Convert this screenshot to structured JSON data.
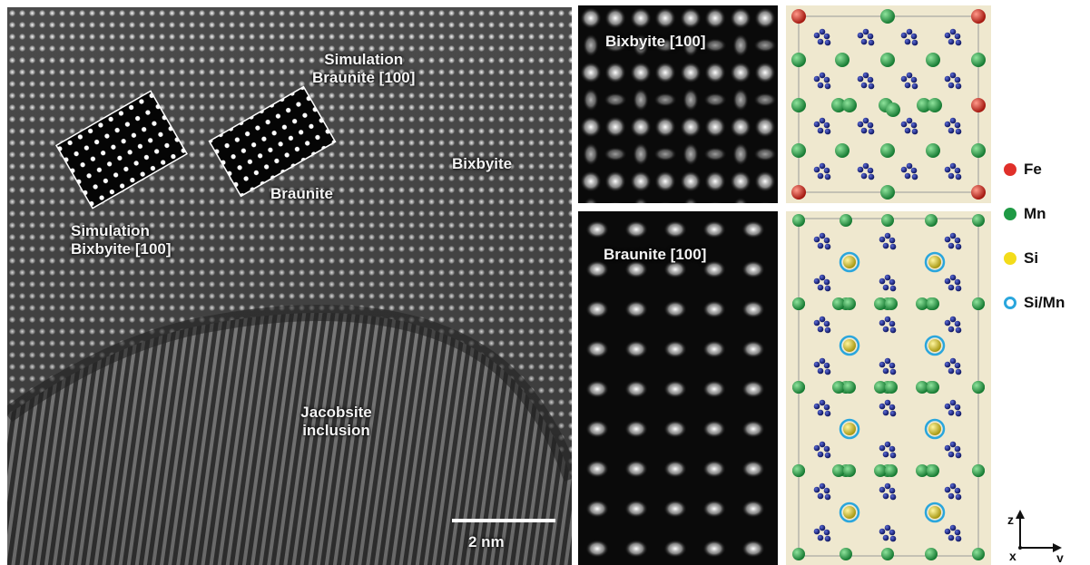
{
  "figure": {
    "main": {
      "labels": {
        "sim_braunite_line1": "Simulation",
        "sim_braunite_line2": "Braunite [100]",
        "bixbyite": "Bixbyite",
        "braunite": "Braunite",
        "sim_bixbyite_line1": "Simulation",
        "sim_bixbyite_line2": "Bixbyite [100]",
        "jacobsite_line1": "Jacobsite",
        "jacobsite_line2": "inclusion"
      },
      "scale_bar_label": "2 nm"
    },
    "simulations": {
      "bixbyite_title": "Bixbyite [100]",
      "braunite_title": "Braunite [100]"
    },
    "legend": [
      {
        "label": "Fe",
        "color": "#e0302a",
        "ring": false
      },
      {
        "label": "Mn",
        "color": "#1f9a45",
        "ring": false
      },
      {
        "label": "Si",
        "color": "#f3dc1a",
        "ring": false
      },
      {
        "label": "Si/Mn",
        "color": "#2aa6dd",
        "ring": true
      }
    ],
    "axes": {
      "z": "z",
      "x": "x",
      "y": "y"
    },
    "colors": {
      "fe": "#c8281e",
      "mn": "#249640",
      "si": "#d6c81e",
      "o": "#1a237e",
      "ring": "#2aa6dd",
      "background": "#efe8cf"
    }
  }
}
